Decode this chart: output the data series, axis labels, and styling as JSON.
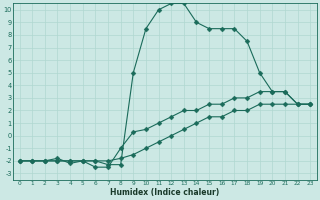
{
  "xlabel": "Humidex (Indice chaleur)",
  "bg_color": "#cce8e4",
  "line_color": "#1a6b5a",
  "grid_color": "#b0d8d0",
  "xlim": [
    -0.5,
    23.5
  ],
  "ylim": [
    -3.5,
    10.5
  ],
  "xticks": [
    0,
    1,
    2,
    3,
    4,
    5,
    6,
    7,
    8,
    9,
    10,
    11,
    12,
    13,
    14,
    15,
    16,
    17,
    18,
    19,
    20,
    21,
    22,
    23
  ],
  "yticks": [
    -3,
    -2,
    -1,
    0,
    1,
    2,
    3,
    4,
    5,
    6,
    7,
    8,
    9,
    10
  ],
  "line1_x": [
    0,
    1,
    2,
    3,
    4,
    5,
    6,
    7,
    8,
    9,
    10,
    11,
    12,
    13,
    14,
    15,
    16,
    17,
    18,
    19,
    20,
    21,
    22,
    23
  ],
  "line1_y": [
    -2,
    -2,
    -2,
    -2,
    -2,
    -2,
    -2,
    -2.3,
    -2.3,
    5.0,
    8.5,
    10.0,
    10.5,
    10.5,
    9.0,
    8.5,
    8.5,
    8.5,
    7.5,
    5.0,
    3.5,
    3.5,
    2.5,
    2.5
  ],
  "line2_x": [
    0,
    1,
    2,
    3,
    4,
    5,
    6,
    7,
    8,
    9,
    10,
    11,
    12,
    13,
    14,
    15,
    16,
    17,
    18,
    19,
    20,
    21,
    22,
    23
  ],
  "line2_y": [
    -2,
    -2,
    -2,
    -1.8,
    -2.2,
    -2,
    -2.5,
    -2.5,
    -1.0,
    0.3,
    0.5,
    1.0,
    1.5,
    2.0,
    2.0,
    2.5,
    2.5,
    3.0,
    3.0,
    3.5,
    3.5,
    3.5,
    2.5,
    2.5
  ],
  "line3_x": [
    0,
    1,
    2,
    3,
    4,
    5,
    6,
    7,
    8,
    9,
    10,
    11,
    12,
    13,
    14,
    15,
    16,
    17,
    18,
    19,
    20,
    21,
    22,
    23
  ],
  "line3_y": [
    -2,
    -2,
    -2,
    -2,
    -2,
    -2,
    -2,
    -2,
    -1.8,
    -1.5,
    -1,
    -0.5,
    0,
    0.5,
    1,
    1.5,
    1.5,
    2,
    2,
    2.5,
    2.5,
    2.5,
    2.5,
    2.5
  ]
}
